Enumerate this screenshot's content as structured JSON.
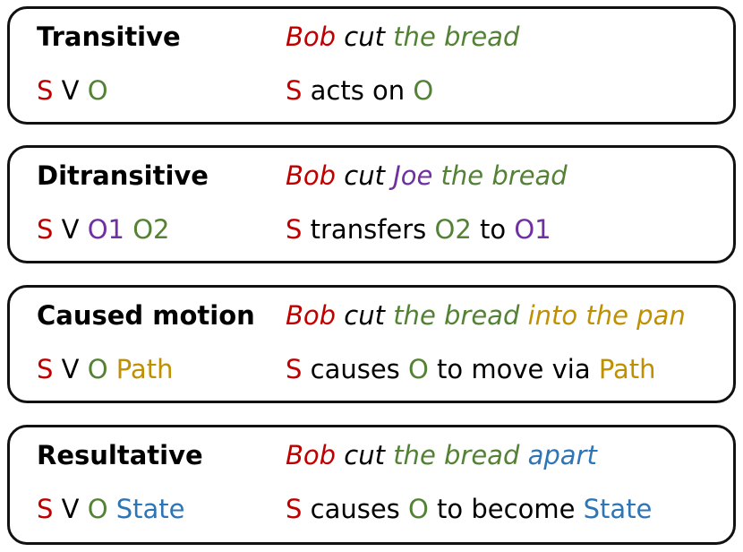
{
  "colors": {
    "subject": "#c00000",
    "object": "#548235",
    "recipient": "#7030a0",
    "path": "#bf9000",
    "state": "#2e75b6",
    "plain": "#000000",
    "border": "#111111"
  },
  "constructions": [
    {
      "name": "Transitive",
      "pattern": [
        {
          "text": "S",
          "role": "subject"
        },
        {
          "text": " V ",
          "role": "plain"
        },
        {
          "text": "O",
          "role": "object"
        }
      ],
      "example": [
        {
          "text": "Bob",
          "role": "subject"
        },
        {
          "text": " cut ",
          "role": "plain"
        },
        {
          "text": "the bread",
          "role": "object"
        }
      ],
      "meaning": [
        {
          "text": "S",
          "role": "subject"
        },
        {
          "text": " acts on ",
          "role": "plain"
        },
        {
          "text": "O",
          "role": "object"
        }
      ]
    },
    {
      "name": "Ditransitive",
      "pattern": [
        {
          "text": "S",
          "role": "subject"
        },
        {
          "text": " V ",
          "role": "plain"
        },
        {
          "text": "O1",
          "role": "recipient"
        },
        {
          "text": " ",
          "role": "plain"
        },
        {
          "text": "O2",
          "role": "object"
        }
      ],
      "example": [
        {
          "text": "Bob",
          "role": "subject"
        },
        {
          "text": " cut ",
          "role": "plain"
        },
        {
          "text": "Joe",
          "role": "recipient"
        },
        {
          "text": " ",
          "role": "plain"
        },
        {
          "text": "the bread",
          "role": "object"
        }
      ],
      "meaning": [
        {
          "text": "S",
          "role": "subject"
        },
        {
          "text": " transfers ",
          "role": "plain"
        },
        {
          "text": "O2",
          "role": "object"
        },
        {
          "text": " to ",
          "role": "plain"
        },
        {
          "text": "O1",
          "role": "recipient"
        }
      ]
    },
    {
      "name": "Caused motion",
      "pattern": [
        {
          "text": "S",
          "role": "subject"
        },
        {
          "text": " V ",
          "role": "plain"
        },
        {
          "text": "O",
          "role": "object"
        },
        {
          "text": " ",
          "role": "plain"
        },
        {
          "text": "Path",
          "role": "path"
        }
      ],
      "example": [
        {
          "text": "Bob",
          "role": "subject"
        },
        {
          "text": " cut ",
          "role": "plain"
        },
        {
          "text": "the bread",
          "role": "object"
        },
        {
          "text": " ",
          "role": "plain"
        },
        {
          "text": "into the pan",
          "role": "path"
        }
      ],
      "meaning": [
        {
          "text": "S",
          "role": "subject"
        },
        {
          "text": " causes ",
          "role": "plain"
        },
        {
          "text": "O",
          "role": "object"
        },
        {
          "text": " to move via ",
          "role": "plain"
        },
        {
          "text": "Path",
          "role": "path"
        }
      ]
    },
    {
      "name": "Resultative",
      "pattern": [
        {
          "text": "S",
          "role": "subject"
        },
        {
          "text": " V ",
          "role": "plain"
        },
        {
          "text": "O",
          "role": "object"
        },
        {
          "text": " ",
          "role": "plain"
        },
        {
          "text": "State",
          "role": "state"
        }
      ],
      "example": [
        {
          "text": "Bob",
          "role": "subject"
        },
        {
          "text": " cut ",
          "role": "plain"
        },
        {
          "text": "the bread",
          "role": "object"
        },
        {
          "text": " ",
          "role": "plain"
        },
        {
          "text": "apart",
          "role": "state"
        }
      ],
      "meaning": [
        {
          "text": "S",
          "role": "subject"
        },
        {
          "text": " causes ",
          "role": "plain"
        },
        {
          "text": "O",
          "role": "object"
        },
        {
          "text": " to become ",
          "role": "plain"
        },
        {
          "text": "State",
          "role": "state"
        }
      ]
    }
  ]
}
